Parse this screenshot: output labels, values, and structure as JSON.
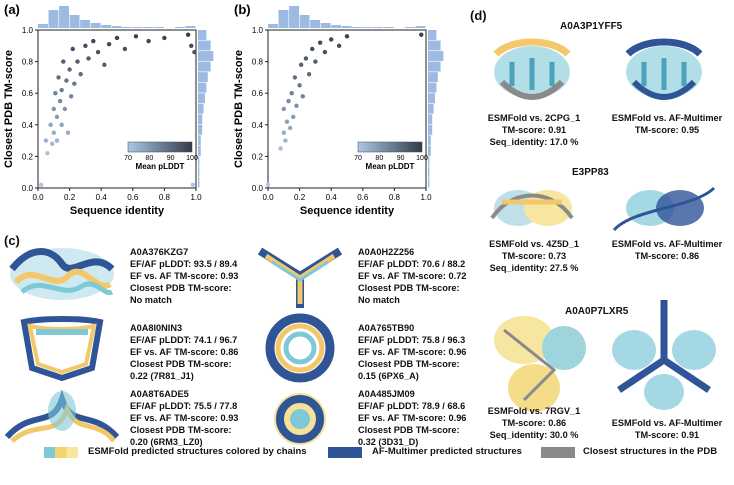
{
  "panels": {
    "a": {
      "label": "(a)",
      "xlabel": "Sequence identity",
      "ylabel": "Closest PDB TM-score",
      "xticks": [
        "0.0",
        "0.2",
        "0.4",
        "0.6",
        "0.8",
        "1.0"
      ],
      "yticks": [
        "0.0",
        "0.2",
        "0.4",
        "0.6",
        "0.8",
        "1.0"
      ],
      "colorbar": {
        "title": "Mean pLDDT",
        "ticks": [
          "70",
          "80",
          "90",
          "100"
        ]
      }
    },
    "b": {
      "label": "(b)",
      "xlabel": "Sequence identity",
      "ylabel": "Closest PDB TM-score",
      "xticks": [
        "0.0",
        "0.2",
        "0.4",
        "0.6",
        "0.8",
        "1.0"
      ],
      "yticks": [
        "0.0",
        "0.2",
        "0.4",
        "0.6",
        "0.8",
        "1.0"
      ],
      "colorbar": {
        "title": "Mean pLDDT",
        "ticks": [
          "70",
          "80",
          "90",
          "100"
        ]
      }
    },
    "c": {
      "label": "(c)",
      "entries": [
        {
          "id": "A0A376KZG7",
          "plddt": "EF/AF pLDDT: 93.5 / 89.4",
          "tm": "EF vs. AF TM-score: 0.93",
          "pdb_label": "Closest PDB TM-score:",
          "pdb_value": "No match"
        },
        {
          "id": "A0A0H2Z256",
          "plddt": "EF/AF pLDDT: 70.6 / 88.2",
          "tm": "EF vs. AF TM-score: 0.72",
          "pdb_label": "Closest PDB TM-score:",
          "pdb_value": "No match"
        },
        {
          "id": "A0A8I0NIN3",
          "plddt": "EF/AF pLDDT: 74.1 / 96.7",
          "tm": "EF vs. AF TM-score: 0.86",
          "pdb_label": "Closest PDB TM-score:",
          "pdb_value": "0.22 (7R81_J1)"
        },
        {
          "id": "A0A765TB90",
          "plddt": "EF/AF pLDDT: 75.8 / 96.3",
          "tm": "EF vs. AF TM-score: 0.96",
          "pdb_label": "Closest PDB TM-score:",
          "pdb_value": "0.15 (6PX6_A)"
        },
        {
          "id": "A0A8T6ADE5",
          "plddt": "EF/AF pLDDT: 75.5 / 77.8",
          "tm": "EF vs. AF TM-score: 0.93",
          "pdb_label": "Closest PDB TM-score:",
          "pdb_value": "0.20 (6RM3_LZ0)"
        },
        {
          "id": "A0A485JM09",
          "plddt": "EF/AF pLDDT: 78.9 / 68.6",
          "tm": "EF vs. AF TM-score: 0.96",
          "pdb_label": "Closest PDB TM-score:",
          "pdb_value": "0.32 (3D31_D)"
        }
      ]
    },
    "d": {
      "label": "(d)",
      "proteins": [
        {
          "title": "A0A3P1YFF5",
          "left": [
            "ESMFold vs. 2CPG_1",
            "TM-score: 0.91",
            "Seq_identity: 17.0 %"
          ],
          "right": [
            "ESMFold vs. AF-Multimer",
            "TM-score: 0.95"
          ]
        },
        {
          "title": "E3PP83",
          "left": [
            "ESMFold vs. 4Z5D_1",
            "TM-score: 0.73",
            "Seq_identity: 27.5 %"
          ],
          "right": [
            "ESMFold vs. AF-Multimer",
            "TM-score: 0.86"
          ]
        },
        {
          "title": "A0A0P7LXR5",
          "left": [
            "ESMFold vs. 7RGV_1",
            "TM-score: 0.86",
            "Seq_identity: 30.0 %"
          ],
          "right": [
            "ESMFold vs. AF-Multimer",
            "TM-score: 0.91"
          ]
        }
      ]
    }
  },
  "legend": {
    "esmfold": "ESMFold predicted structures colored by chains",
    "afm": "AF-Multimer predicted structures",
    "pdb": "Closest structures in the PDB"
  },
  "colors": {
    "scatter_low": "#aac8e8",
    "scatter_high": "#333b48",
    "histogram": "#9dbbe2",
    "afm": "#2f5597",
    "pdb": "#8a8a8a",
    "esm_chain1": "#7ec8d8",
    "esm_chain2": "#f3d36b",
    "esm_chain3": "#f6e6a0"
  },
  "chart_data": [
    {
      "type": "scatter",
      "panel": "a",
      "xlabel": "Sequence identity",
      "ylabel": "Closest PDB TM-score",
      "xlim": [
        0,
        1.0
      ],
      "ylim": [
        0,
        1.0
      ],
      "colorbar_label": "Mean pLDDT",
      "colorbar_range": [
        70,
        100
      ],
      "points": [
        [
          0.02,
          0.02
        ],
        [
          0.05,
          0.3
        ],
        [
          0.06,
          0.22
        ],
        [
          0.08,
          0.4
        ],
        [
          0.09,
          0.28
        ],
        [
          0.1,
          0.5
        ],
        [
          0.1,
          0.35
        ],
        [
          0.11,
          0.6
        ],
        [
          0.12,
          0.45
        ],
        [
          0.12,
          0.3
        ],
        [
          0.13,
          0.7
        ],
        [
          0.14,
          0.55
        ],
        [
          0.15,
          0.4
        ],
        [
          0.15,
          0.62
        ],
        [
          0.16,
          0.8
        ],
        [
          0.17,
          0.5
        ],
        [
          0.18,
          0.68
        ],
        [
          0.19,
          0.35
        ],
        [
          0.2,
          0.75
        ],
        [
          0.21,
          0.58
        ],
        [
          0.22,
          0.88
        ],
        [
          0.23,
          0.66
        ],
        [
          0.25,
          0.8
        ],
        [
          0.27,
          0.72
        ],
        [
          0.3,
          0.9
        ],
        [
          0.32,
          0.82
        ],
        [
          0.35,
          0.93
        ],
        [
          0.38,
          0.86
        ],
        [
          0.42,
          0.78
        ],
        [
          0.45,
          0.91
        ],
        [
          0.5,
          0.95
        ],
        [
          0.55,
          0.88
        ],
        [
          0.62,
          0.96
        ],
        [
          0.7,
          0.93
        ],
        [
          0.8,
          0.95
        ],
        [
          0.95,
          0.97
        ],
        [
          0.97,
          0.9
        ],
        [
          0.99,
          0.86
        ],
        [
          0.98,
          0.02
        ]
      ]
    },
    {
      "type": "scatter",
      "panel": "b",
      "xlabel": "Sequence identity",
      "ylabel": "Closest PDB TM-score",
      "xlim": [
        0,
        1.0
      ],
      "ylim": [
        0,
        1.0
      ],
      "colorbar_label": "Mean pLDDT",
      "colorbar_range": [
        70,
        100
      ],
      "points": [
        [
          0.0,
          0.02
        ],
        [
          0.08,
          0.25
        ],
        [
          0.1,
          0.35
        ],
        [
          0.1,
          0.5
        ],
        [
          0.11,
          0.3
        ],
        [
          0.12,
          0.42
        ],
        [
          0.13,
          0.55
        ],
        [
          0.14,
          0.38
        ],
        [
          0.15,
          0.6
        ],
        [
          0.16,
          0.45
        ],
        [
          0.17,
          0.7
        ],
        [
          0.18,
          0.52
        ],
        [
          0.2,
          0.65
        ],
        [
          0.21,
          0.78
        ],
        [
          0.22,
          0.58
        ],
        [
          0.24,
          0.82
        ],
        [
          0.26,
          0.72
        ],
        [
          0.28,
          0.88
        ],
        [
          0.3,
          0.8
        ],
        [
          0.33,
          0.92
        ],
        [
          0.36,
          0.86
        ],
        [
          0.4,
          0.94
        ],
        [
          0.45,
          0.9
        ],
        [
          0.5,
          0.96
        ],
        [
          0.97,
          0.97
        ]
      ]
    }
  ]
}
